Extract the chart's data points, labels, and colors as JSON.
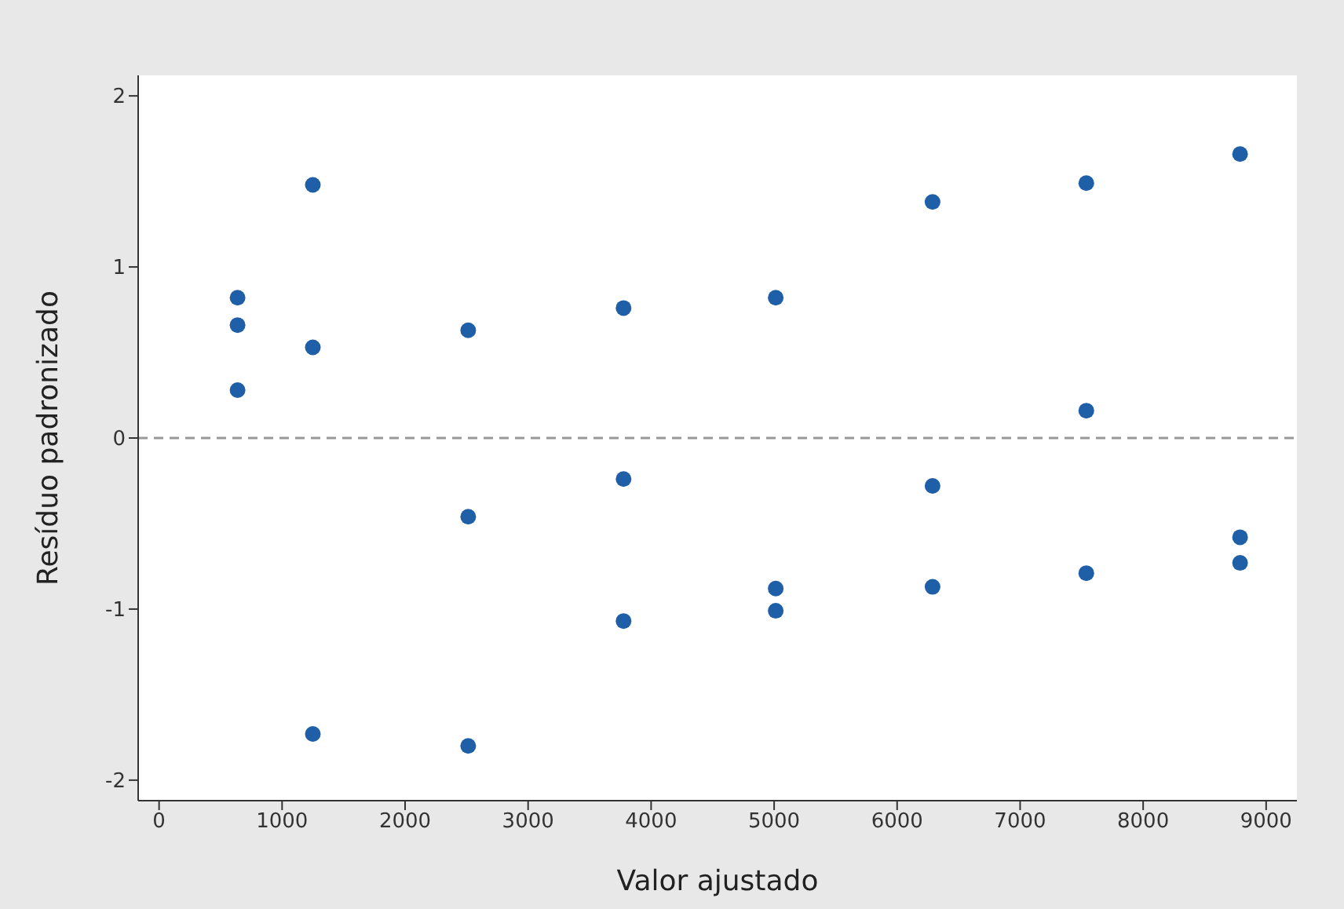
{
  "chart_data": {
    "type": "scatter",
    "xlabel": "Valor ajustado",
    "ylabel": "Resíduo padronizado",
    "series": [
      {
        "color": "#1f5fa8",
        "x": [
          638,
          638,
          638,
          1250,
          1250,
          1250,
          2513,
          2513,
          2513,
          3776,
          3776,
          3776,
          5013,
          5013,
          5013,
          6288,
          6288,
          6288,
          7538,
          7538,
          7538,
          8788,
          8788,
          8788
        ],
        "values": [
          0.82,
          0.66,
          0.28,
          1.48,
          0.53,
          -1.73,
          0.63,
          -0.46,
          -1.8,
          0.76,
          -0.24,
          -1.07,
          0.82,
          -0.88,
          -1.01,
          1.38,
          -0.28,
          -0.87,
          1.49,
          0.16,
          -0.79,
          1.66,
          -0.58,
          -0.73
        ]
      }
    ],
    "xlim": [
      -170,
      9250
    ],
    "xticks": [
      0,
      1000,
      2000,
      3000,
      4000,
      5000,
      6000,
      7000,
      8000,
      9000
    ],
    "ylim": [
      -2.12,
      2.12
    ],
    "yticks": [
      -2,
      -1,
      0,
      1,
      2
    ],
    "ref_lines": [
      {
        "axis": "y",
        "value": 0,
        "color": "#999999",
        "line_style": "dashed"
      }
    ],
    "marker": "circle",
    "grid": false,
    "legend": false
  }
}
